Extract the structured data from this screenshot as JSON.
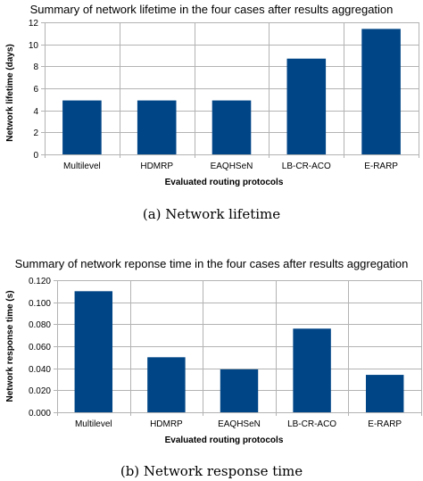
{
  "chart_data": [
    {
      "type": "bar",
      "title": "Summary of network lifetime in the four cases after results aggregation",
      "xlabel": "Evaluated routing protocols",
      "ylabel": "Network lifetime (days)",
      "categories": [
        "Multilevel",
        "HDMRP",
        "EAQHSeN",
        "LB-CR-ACO",
        "E-RARP"
      ],
      "values": [
        4.9,
        4.9,
        4.9,
        8.7,
        11.4
      ],
      "ylim": [
        0,
        12
      ],
      "yticks": [
        "0",
        "2",
        "4",
        "6",
        "8",
        "10",
        "12"
      ],
      "grid": true,
      "legend": "none",
      "bar_color": "#004586",
      "caption": "(a) Network lifetime"
    },
    {
      "type": "bar",
      "title": "Summary of network reponse time in the four cases after results aggregation",
      "xlabel": "Evaluated routing protocols",
      "ylabel": "Network response time (s)",
      "categories": [
        "Multilevel",
        "HDMRP",
        "EAQHSeN",
        "LB-CR-ACO",
        "E-RARP"
      ],
      "values": [
        0.11,
        0.05,
        0.039,
        0.076,
        0.034
      ],
      "ylim": [
        0,
        0.12
      ],
      "yticks": [
        "0.000",
        "0.020",
        "0.040",
        "0.060",
        "0.080",
        "0.100",
        "0.120"
      ],
      "grid": true,
      "legend": "none",
      "bar_color": "#004586",
      "caption": "(b) Network response time"
    }
  ]
}
